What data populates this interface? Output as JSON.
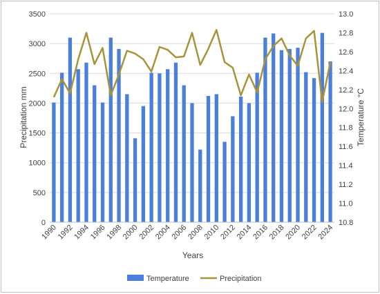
{
  "chart_data": {
    "type": "bar",
    "title": "",
    "xlabel": "Years",
    "ylabel": "Precipitation mm",
    "y2label": "Temperature °C",
    "ylim": [
      0,
      3500
    ],
    "y2lim": [
      10.8,
      13.0
    ],
    "grid": true,
    "legend_position": "bottom",
    "x": [
      1990,
      1991,
      1992,
      1993,
      1994,
      1995,
      1996,
      1997,
      1998,
      1999,
      2000,
      2001,
      2002,
      2003,
      2004,
      2005,
      2006,
      2007,
      2008,
      2009,
      2010,
      2011,
      2012,
      2013,
      2014,
      2015,
      2016,
      2017,
      2018,
      2019,
      2020,
      2021,
      2022,
      2023,
      2024
    ],
    "x_tick_labels": [
      "1990",
      "1992",
      "1994",
      "1996",
      "1998",
      "2000",
      "2002",
      "2004",
      "2006",
      "2008",
      "2010",
      "2012",
      "2014",
      "2016",
      "2018",
      "2020",
      "2022",
      "2024"
    ],
    "y_ticks": [
      0,
      500,
      1000,
      1500,
      2000,
      2500,
      3000,
      3500
    ],
    "y2_ticks": [
      "10.8",
      "11.0",
      "11.2",
      "11.4",
      "11.6",
      "11.8",
      "12.0",
      "12.2",
      "12.4",
      "12.6",
      "12.8",
      "13.0"
    ],
    "series": [
      {
        "name": "Temperature",
        "type": "bar",
        "axis": "left",
        "color": "#4a7fdc",
        "values": [
          2010,
          2510,
          3100,
          2570,
          2680,
          2300,
          2010,
          3100,
          2910,
          2150,
          1410,
          1950,
          2510,
          2500,
          2570,
          2680,
          2300,
          2000,
          1220,
          2120,
          2150,
          1350,
          1780,
          2110,
          2000,
          2510,
          3100,
          3170,
          2890,
          2910,
          2930,
          2520,
          2420,
          3180,
          2700
        ]
      },
      {
        "name": "Precipitation",
        "type": "line",
        "axis": "right",
        "color": "#a8933a",
        "values": [
          12.12,
          12.31,
          12.16,
          12.52,
          12.8,
          12.47,
          12.64,
          12.14,
          12.36,
          12.61,
          12.58,
          12.52,
          12.39,
          12.65,
          12.62,
          12.54,
          12.55,
          12.8,
          12.46,
          12.63,
          12.83,
          12.49,
          12.43,
          12.14,
          12.36,
          12.17,
          12.52,
          12.66,
          12.74,
          12.56,
          12.45,
          12.74,
          12.82,
          12.07,
          12.49
        ]
      }
    ],
    "legend": [
      "Temperature",
      "Precipitation"
    ]
  }
}
